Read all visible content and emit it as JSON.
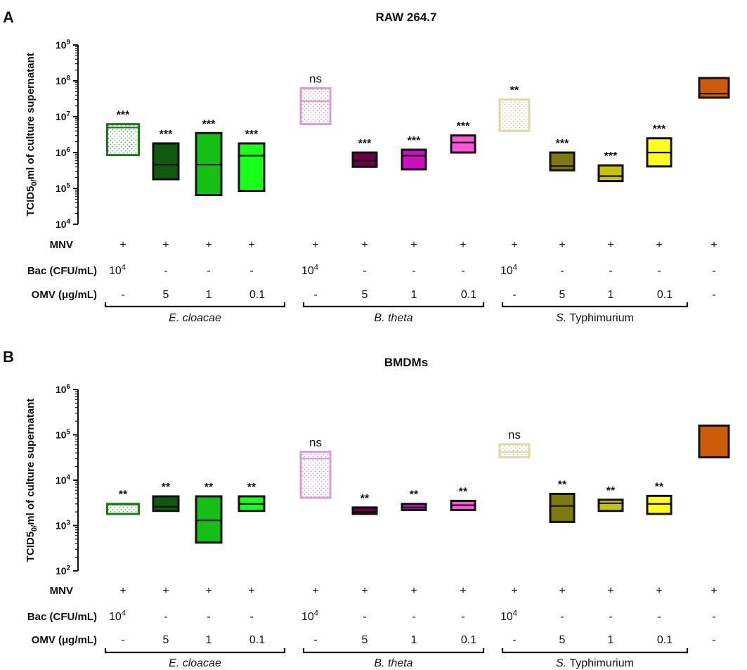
{
  "figure": {
    "colors": {
      "ec_bac": "#c8f0c8",
      "ec_5": "#0f5a0f",
      "ec_1": "#15bf15",
      "ec_01": "#1aff1a",
      "bt_bac": "#f7c6ee",
      "bt_5": "#6b0045",
      "bt_1": "#cc10c0",
      "bt_01": "#ff55d8",
      "st_bac": "#f2efc5",
      "st_5": "#7d7a0c",
      "st_1": "#c6c20e",
      "st_01": "#ffff1a",
      "mnv": "#cc5c0a",
      "ec_edge": "#1a7a1a",
      "bt_edge": "#d79fcf",
      "st_edge": "#dcd9a8"
    },
    "rows": {
      "mnv_label": "MNV",
      "bac_label": "Bac (CFU/mL)",
      "omv_label": "OMV (μg/mL)",
      "mnv_values": [
        "+",
        "+",
        "+",
        "+",
        "+",
        "+",
        "+",
        "+",
        "+",
        "+",
        "+",
        "+",
        "+"
      ],
      "bac_values": [
        "10^4",
        "-",
        "-",
        "-",
        "10^4",
        "-",
        "-",
        "-",
        "10^4",
        "-",
        "-",
        "-",
        "-"
      ],
      "omv_values": [
        "-",
        "5",
        "1",
        "0.1",
        "-",
        "5",
        "1",
        "0.1",
        "-",
        "5",
        "1",
        "0.1",
        "-"
      ]
    },
    "groups": [
      {
        "name_italic": "E. cloacae",
        "name_rest": ""
      },
      {
        "name_italic": "B. theta",
        "name_rest": ""
      },
      {
        "name_italic": "S.",
        "name_rest": " Typhimurium"
      }
    ]
  },
  "chart_data": [
    {
      "panel": "A",
      "type": "box",
      "title": "RAW 264.7",
      "ylabel": "TCID50/ml of culture supernatant",
      "yscale": "log",
      "ylim": [
        10000,
        1000000000
      ],
      "ytick_exponents": [
        4,
        5,
        6,
        7,
        8,
        9
      ],
      "boxes": [
        {
          "low": 850000,
          "median": 5000000,
          "high": 6200000,
          "sig": "***",
          "color_key": "ec_bac",
          "dotted": true
        },
        {
          "low": 180000,
          "median": 460000,
          "high": 1800000,
          "sig": "***",
          "color_key": "ec_5",
          "dotted": false
        },
        {
          "low": 65000,
          "median": 460000,
          "high": 3500000,
          "sig": "***",
          "color_key": "ec_1",
          "dotted": false
        },
        {
          "low": 85000,
          "median": 820000,
          "high": 1800000,
          "sig": "***",
          "color_key": "ec_01",
          "dotted": false
        },
        {
          "low": 6200000,
          "median": 27000000,
          "high": 62000000,
          "sig": "ns",
          "color_key": "bt_bac",
          "dotted": true
        },
        {
          "low": 400000,
          "median": 600000,
          "high": 1000000,
          "sig": "***",
          "color_key": "bt_5",
          "dotted": false
        },
        {
          "low": 340000,
          "median": 820000,
          "high": 1200000,
          "sig": "***",
          "color_key": "bt_1",
          "dotted": false
        },
        {
          "low": 1000000,
          "median": 1900000,
          "high": 3000000,
          "sig": "***",
          "color_key": "bt_01",
          "dotted": false
        },
        {
          "low": 4000000,
          "median": 4000000,
          "high": 30000000,
          "sig": "**",
          "color_key": "st_bac",
          "dotted": true
        },
        {
          "low": 320000,
          "median": 420000,
          "high": 1000000,
          "sig": "***",
          "color_key": "st_5",
          "dotted": false
        },
        {
          "low": 160000,
          "median": 220000,
          "high": 440000,
          "sig": "***",
          "color_key": "st_1",
          "dotted": false
        },
        {
          "low": 410000,
          "median": 1000000,
          "high": 2500000,
          "sig": "***",
          "color_key": "st_01",
          "dotted": false
        },
        {
          "low": 34000000,
          "median": 44000000,
          "high": 120000000,
          "sig": "",
          "color_key": "mnv",
          "dotted": false
        }
      ]
    },
    {
      "panel": "B",
      "type": "box",
      "title": "BMDMs",
      "ylabel": "TCID50/ml of culture supernatant",
      "yscale": "log",
      "ylim": [
        100,
        1000000
      ],
      "ytick_exponents": [
        2,
        3,
        4,
        5,
        6
      ],
      "boxes": [
        {
          "low": 1800,
          "median": 2900,
          "high": 3000,
          "sig": "**",
          "color_key": "ec_bac",
          "dotted": true
        },
        {
          "low": 2100,
          "median": 2600,
          "high": 4400,
          "sig": "**",
          "color_key": "ec_5",
          "dotted": false
        },
        {
          "low": 420,
          "median": 1300,
          "high": 4400,
          "sig": "**",
          "color_key": "ec_1",
          "dotted": false
        },
        {
          "low": 2100,
          "median": 3000,
          "high": 4400,
          "sig": "**",
          "color_key": "ec_01",
          "dotted": false
        },
        {
          "low": 4100,
          "median": 30000,
          "high": 42000,
          "sig": "ns",
          "color_key": "bt_bac",
          "dotted": true
        },
        {
          "low": 1800,
          "median": 2000,
          "high": 2500,
          "sig": "**",
          "color_key": "bt_5",
          "dotted": false
        },
        {
          "low": 2200,
          "median": 2500,
          "high": 3000,
          "sig": "**",
          "color_key": "bt_1",
          "dotted": false
        },
        {
          "low": 2200,
          "median": 2800,
          "high": 3500,
          "sig": "**",
          "color_key": "bt_01",
          "dotted": false
        },
        {
          "low": 32000,
          "median": 42000,
          "high": 62000,
          "sig": "ns",
          "color_key": "st_bac",
          "dotted": true
        },
        {
          "low": 1200,
          "median": 2700,
          "high": 5000,
          "sig": "**",
          "color_key": "st_5",
          "dotted": false
        },
        {
          "low": 2100,
          "median": 3100,
          "high": 3700,
          "sig": "**",
          "color_key": "st_1",
          "dotted": false
        },
        {
          "low": 1800,
          "median": 3000,
          "high": 4500,
          "sig": "**",
          "color_key": "st_01",
          "dotted": false
        },
        {
          "low": 32000,
          "median": 32000,
          "high": 160000,
          "sig": "",
          "color_key": "mnv",
          "dotted": false
        }
      ]
    }
  ]
}
